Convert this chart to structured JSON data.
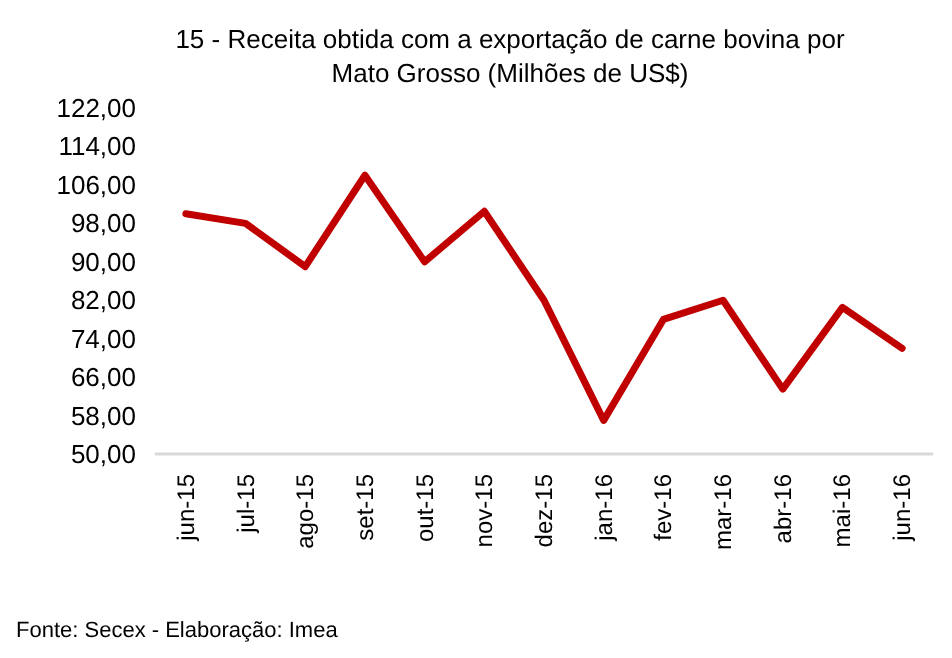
{
  "chart_data": {
    "type": "line",
    "title": "15 - Receita obtida com a exportação de carne bovina por\nMato Grosso (Milhões de US$)",
    "categories": [
      "jun-15",
      "jul-15",
      "ago-15",
      "set-15",
      "out-15",
      "nov-15",
      "dez-15",
      "jan-16",
      "fev-16",
      "mar-16",
      "abr-16",
      "mai-16",
      "jun-16"
    ],
    "series": [
      {
        "color": "#c00000",
        "values": [
          100,
          98,
          89,
          108,
          90,
          100.5,
          82,
          57,
          78,
          82,
          63.5,
          80.5,
          72
        ]
      }
    ],
    "ylim": [
      50,
      122
    ],
    "yticks": [
      {
        "value": 50,
        "label": "50,00"
      },
      {
        "value": 58,
        "label": "58,00"
      },
      {
        "value": 66,
        "label": "66,00"
      },
      {
        "value": 74,
        "label": "74,00"
      },
      {
        "value": 82,
        "label": "82,00"
      },
      {
        "value": 90,
        "label": "90,00"
      },
      {
        "value": 98,
        "label": "98,00"
      },
      {
        "value": 106,
        "label": "106,00"
      },
      {
        "value": 114,
        "label": "114,00"
      },
      {
        "value": 122,
        "label": "122,00"
      }
    ],
    "grid": false,
    "marker": "none",
    "line_style": "solid",
    "annotations": [
      "Fonte: Secex - Elaboração: Imea"
    ]
  }
}
